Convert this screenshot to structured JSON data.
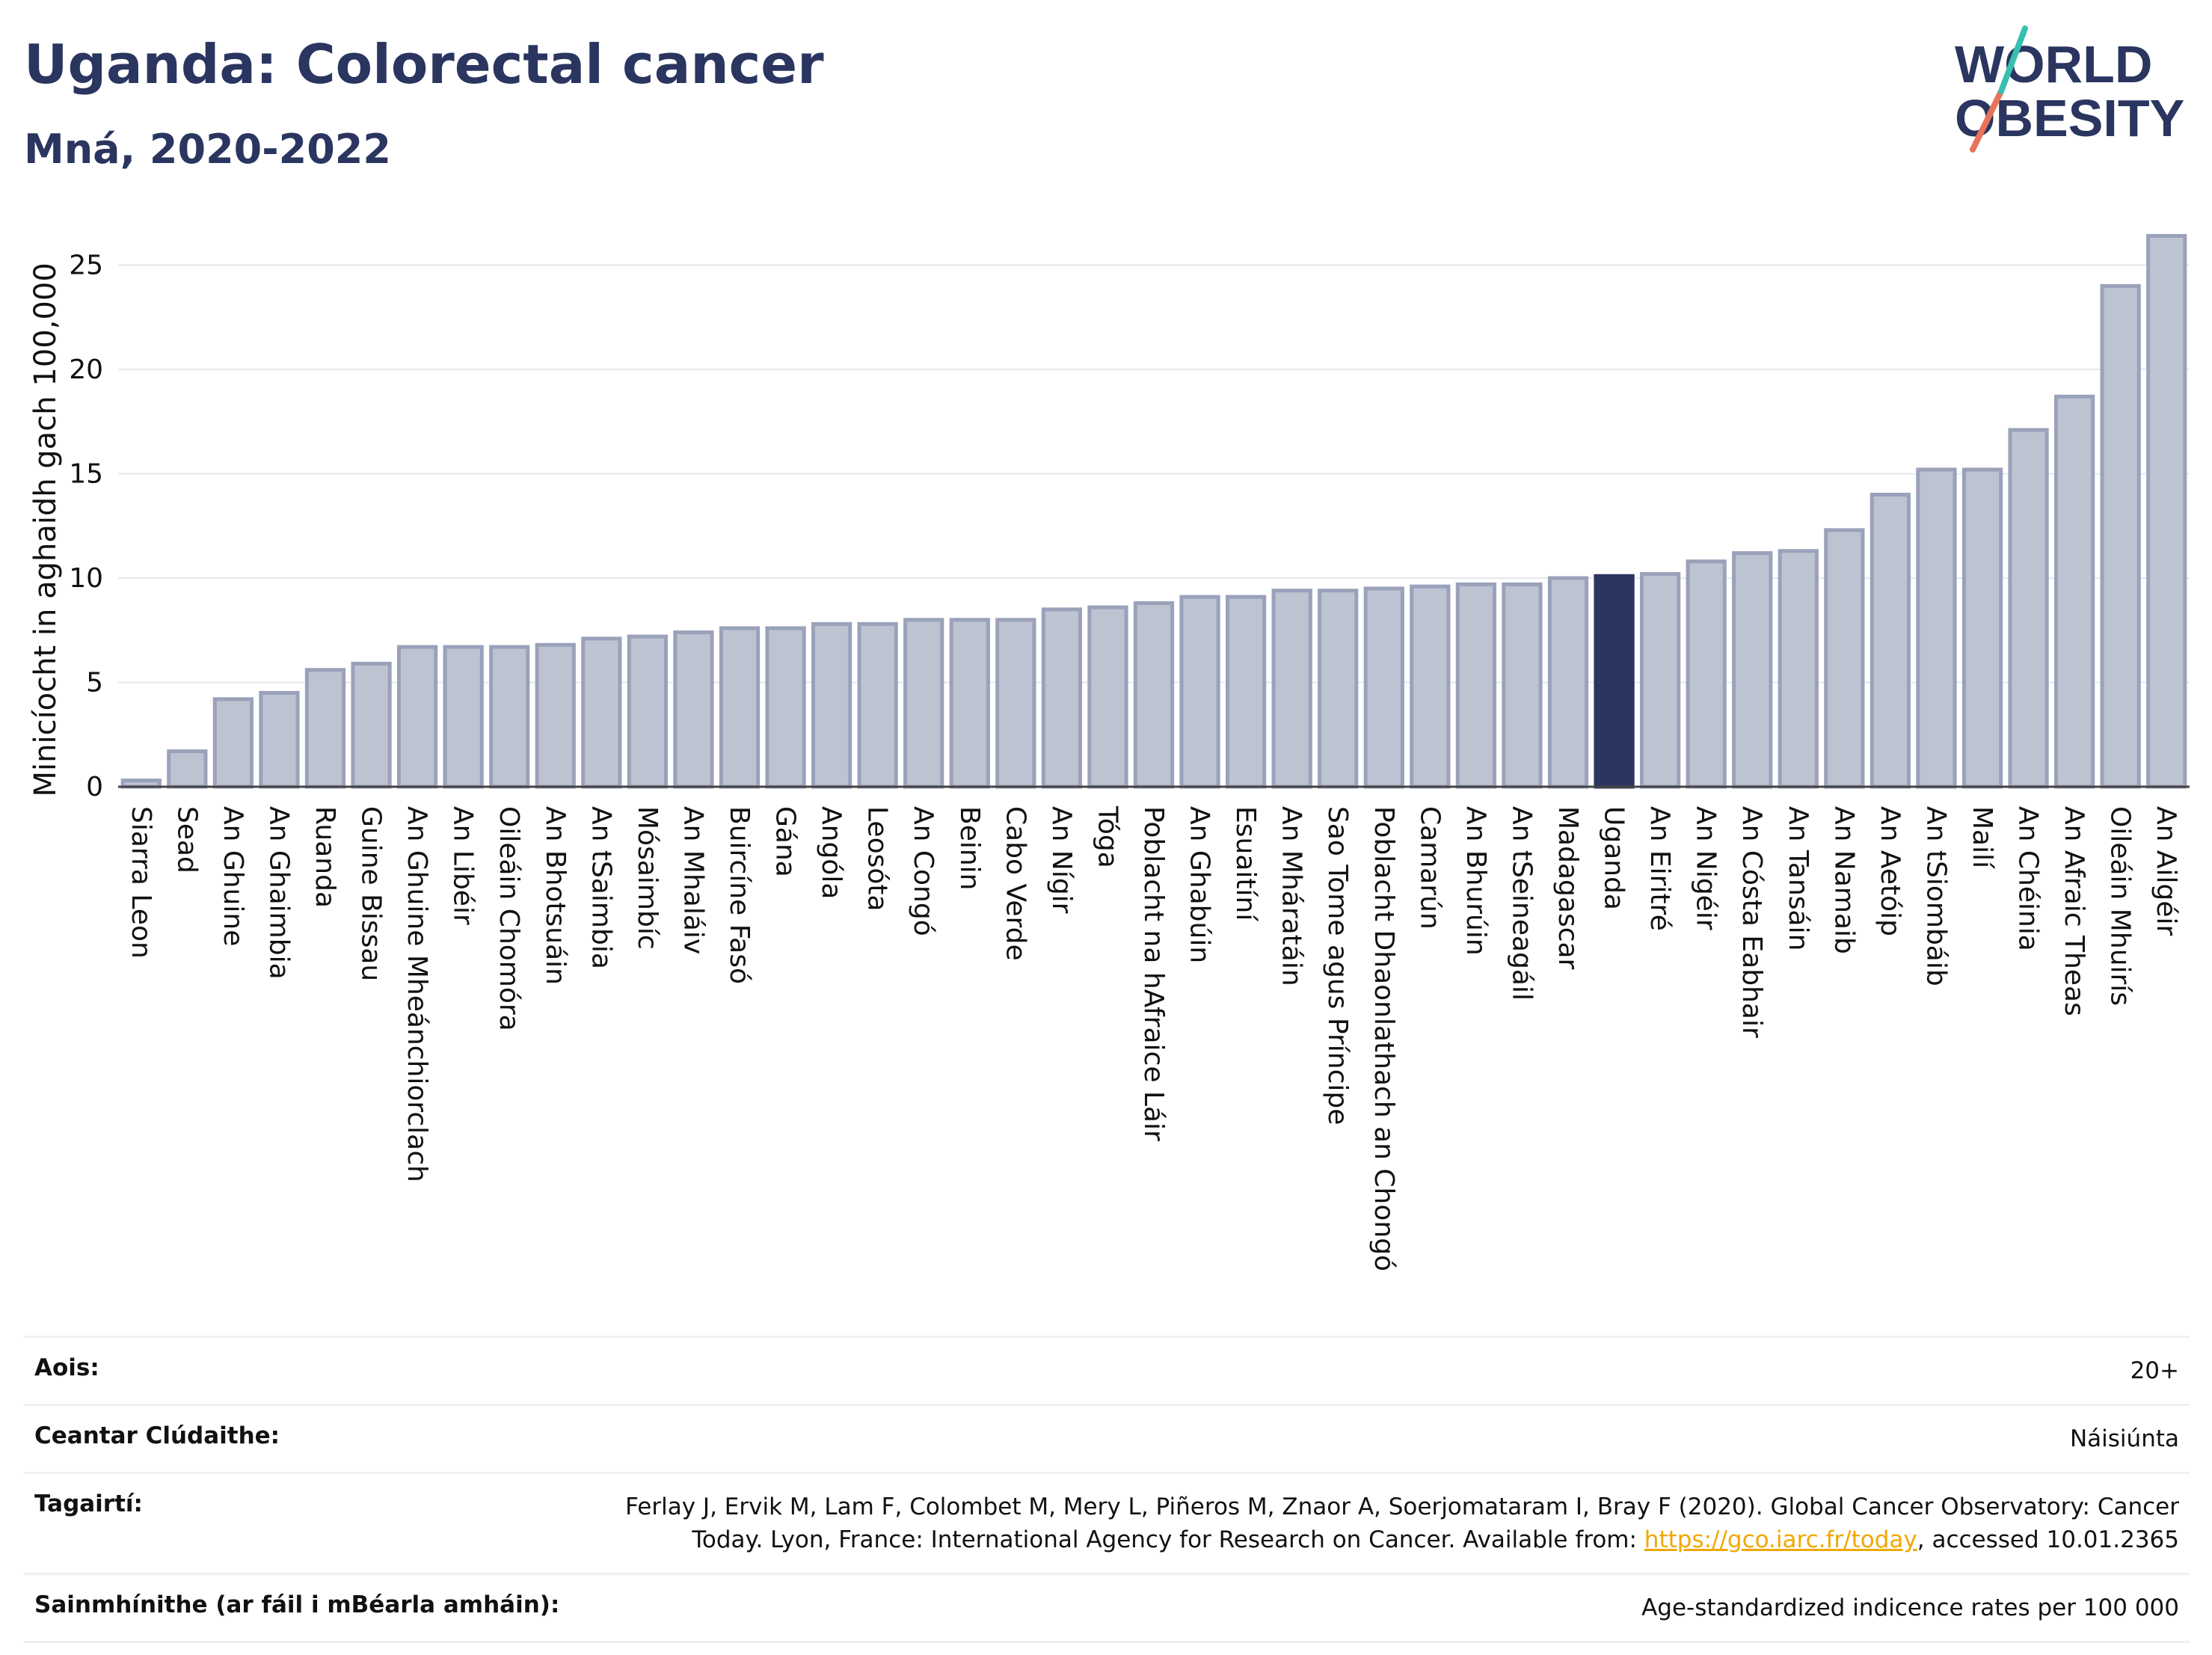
{
  "header": {
    "title": "Uganda: Colorectal cancer",
    "subtitle": "Mná, 2020-2022"
  },
  "logo": {
    "line1": "WORLD",
    "line2": "OBESITY",
    "name": "world-obesity-logo"
  },
  "colors": {
    "bar_fill": "#bec3d1",
    "bar_stroke": "#9aa1ba",
    "highlight": "#2a3560",
    "grid": "#e6e8ee",
    "text": "#2a3560",
    "link": "#f0a800"
  },
  "chart_data": {
    "type": "bar",
    "title": "Uganda: Colorectal cancer",
    "subtitle": "Mná, 2020-2022",
    "ylabel": "Minicíocht in aghaidh gach 100,000",
    "xlabel": "",
    "ylim": [
      0,
      27.5
    ],
    "yticks": [
      0,
      5,
      10,
      15,
      20,
      25
    ],
    "grid": true,
    "highlight_category": "Uganda",
    "categories": [
      "Siarra Leon",
      "Sead",
      "An Ghuine",
      "An Ghaimbia",
      "Ruanda",
      "Guine Bissau",
      "An Ghuine Mheánchiorclach",
      "An Libéir",
      "Oileáin Chomóra",
      "An Bhotsuáin",
      "An tSaimbia",
      "Mósaimbíc",
      "An Mhaláiv",
      "Buircíne Fasó",
      "Gána",
      "Angóla",
      "Leosóta",
      "An Congó",
      "Beinin",
      "Cabo Verde",
      "An Nígir",
      "Tóga",
      "Poblacht na hAfraice Láir",
      "An Ghabúin",
      "Esuaitíní",
      "An Mháratáin",
      "Sao Tome agus Príncipe",
      "Poblacht Dhaonlathach an Chongó",
      "Camarún",
      "An Bhurúin",
      "An tSeineagáil",
      "Madagascar",
      "Uganda",
      "An Eiritré",
      "An Nigéir",
      "An Cósta Eabhair",
      "An Tansáin",
      "An Namaib",
      "An Aetóip",
      "An tSiombáib",
      "Mailí",
      "An Chéinia",
      "An Afraic Theas",
      "Oileáin Mhuirís",
      "An Ailgéir"
    ],
    "values": [
      0.3,
      1.7,
      4.2,
      4.5,
      5.6,
      5.9,
      6.7,
      6.7,
      6.7,
      6.8,
      7.1,
      7.2,
      7.4,
      7.6,
      7.6,
      7.8,
      7.8,
      8.0,
      8.0,
      8.0,
      8.5,
      8.6,
      8.8,
      9.1,
      9.1,
      9.4,
      9.4,
      9.5,
      9.6,
      9.7,
      9.7,
      10.0,
      10.1,
      10.2,
      10.8,
      11.2,
      11.3,
      12.3,
      14.0,
      15.2,
      15.2,
      17.1,
      18.7,
      24.0,
      26.4
    ]
  },
  "meta": {
    "age_label": "Aois:",
    "age_value": "20+",
    "coverage_label": "Ceantar Clúdaithe:",
    "coverage_value": "Náisiúnta",
    "refs_label": "Tagairtí:",
    "refs_text_1": "Ferlay J, Ervik M, Lam F, Colombet M, Mery L, Piñeros M, Znaor A, Soerjomataram I, Bray F (2020). Global Cancer Observatory: Cancer Today. Lyon, France: International Agency for Research on Cancer. Available from: ",
    "refs_link": "https://gco.iarc.fr/today",
    "refs_text_2": ", accessed 10.01.2365",
    "def_label": "Sainmhínithe (ar fáil i mBéarla amháin):",
    "def_value": "Age-standardized indicence rates per 100 000"
  }
}
